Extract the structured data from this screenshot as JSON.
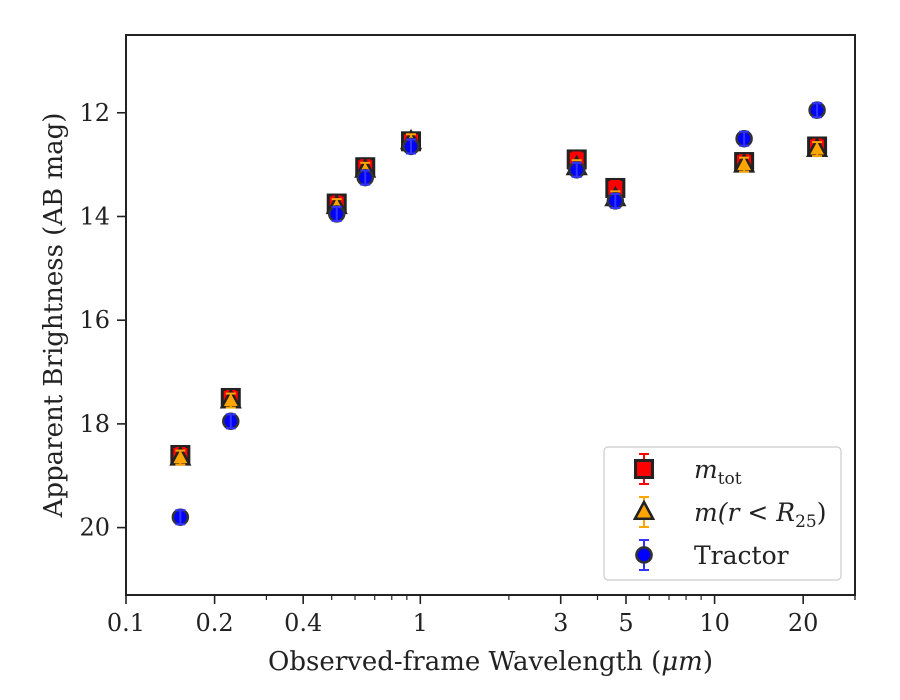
{
  "chart_data": {
    "type": "scatter",
    "title": "",
    "xlabel": "Observed-frame Wavelength (",
    "xlabel_unit": "μm",
    "xlabel_close": ")",
    "ylabel": "Apparent Brightness (AB mag)",
    "xscale": "log",
    "xlim": [
      0.1,
      30
    ],
    "ylim": [
      21.3,
      10.5
    ],
    "y_inverted": true,
    "grid": false,
    "legend_position": "lower-right",
    "x_ticks": [
      {
        "value": 0.1,
        "label": "0.1"
      },
      {
        "value": 0.2,
        "label": "0.2"
      },
      {
        "value": 0.4,
        "label": "0.4"
      },
      {
        "value": 1,
        "label": "1"
      },
      {
        "value": 3,
        "label": "3"
      },
      {
        "value": 5,
        "label": "5"
      },
      {
        "value": 10,
        "label": "10"
      },
      {
        "value": 20,
        "label": "20"
      }
    ],
    "y_ticks": [
      {
        "value": 12,
        "label": "12"
      },
      {
        "value": 14,
        "label": "14"
      },
      {
        "value": 16,
        "label": "16"
      },
      {
        "value": 18,
        "label": "18"
      },
      {
        "value": 20,
        "label": "20"
      }
    ],
    "series": [
      {
        "name": "m_tot",
        "legend_main": "m",
        "legend_sub": "tot",
        "marker": "square",
        "color": "#ff0000",
        "edge_color": "#222222",
        "errorbar_color": "#ff0000",
        "x": [
          0.153,
          0.227,
          0.52,
          0.65,
          0.93,
          3.4,
          4.6,
          12.6,
          22.3
        ],
        "y": [
          18.6,
          17.5,
          13.75,
          13.05,
          12.55,
          12.9,
          13.45,
          12.95,
          12.65
        ]
      },
      {
        "name": "m(r < R_25)",
        "legend_main": "m(r < R",
        "legend_sub": "25",
        "legend_after": ")",
        "marker": "triangle",
        "color": "#ffa500",
        "edge_color": "#222222",
        "errorbar_color": "#ffa500",
        "x": [
          0.153,
          0.227,
          0.52,
          0.65,
          0.93,
          3.4,
          4.6,
          12.6,
          22.3
        ],
        "y": [
          18.65,
          17.55,
          13.8,
          13.1,
          12.55,
          13.05,
          13.65,
          13.0,
          12.7
        ]
      },
      {
        "name": "Tractor",
        "legend_main": "Tractor",
        "marker": "circle",
        "color": "#0000ff",
        "edge_color": "#333333",
        "errorbar_color": "#3333ff",
        "x": [
          0.153,
          0.227,
          0.52,
          0.65,
          0.93,
          3.4,
          4.6,
          12.6,
          22.3
        ],
        "y": [
          19.8,
          17.95,
          13.95,
          13.25,
          12.65,
          13.1,
          13.7,
          12.5,
          11.95
        ]
      }
    ]
  }
}
